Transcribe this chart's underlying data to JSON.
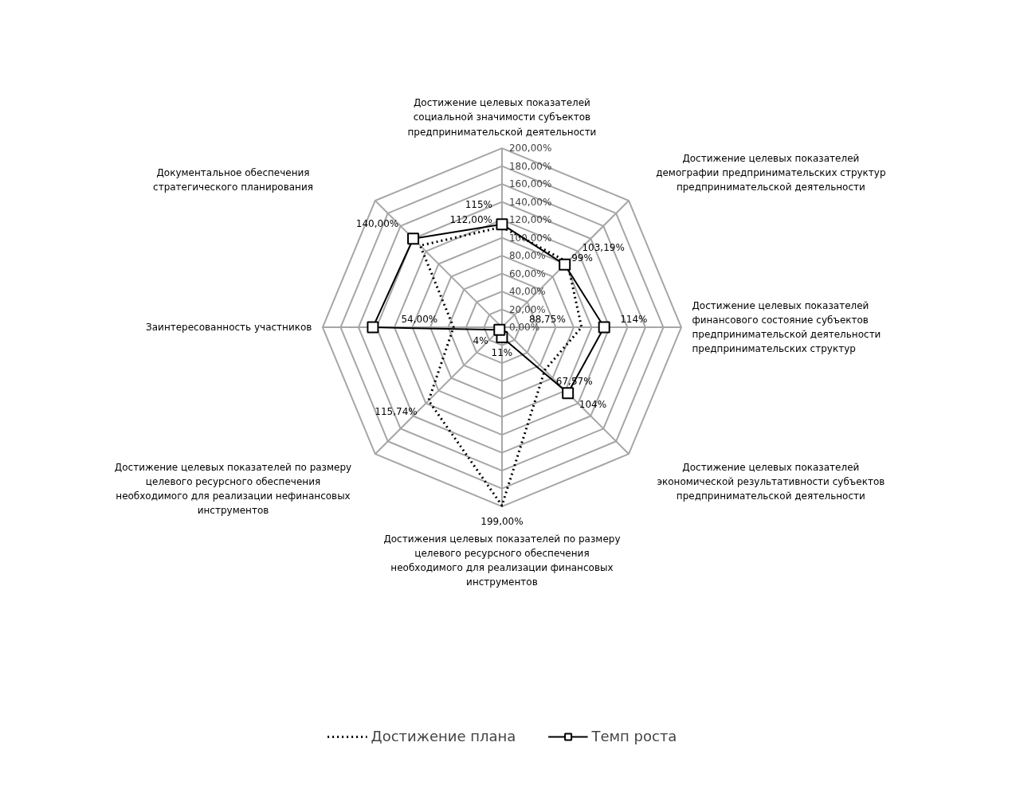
{
  "chart_data": {
    "type": "radar",
    "categories": [
      "Достижение целевых показателей\nсоциальной значимости субъектов\nпредпринимательской деятельности",
      "Достижение целевых показателей\nдемографии предпринимательских структур\nпредпринимательской деятельности",
      "Достижение целевых показателей\nфинансового состояние субъектов\nпредпринимательской деятельности\nпредпринимательских структур",
      "Достижение целевых показателей\nэкономической результативности субъектов\nпредпринимательской деятельности",
      "Достижения целевых показателей по размеру\nцелевого ресурсного обеспечения\nнеобходимого для реализации финансовых\nинструментов",
      "Достижение целевых показателей по размеру\nцелевого ресурсного обеспечения\nнеобходимого для реализации нефинансовых\nинструментов",
      "Заинтересованность участников",
      "Документальное обеспечения\nстратегического планирования"
    ],
    "series": [
      {
        "name": "Достижение плана",
        "color": "#000000",
        "marker": "none",
        "line_style": "dotted",
        "values": [
          112,
          103.19,
          88.75,
          67.57,
          199,
          115.74,
          54,
          129
        ],
        "value_labels": [
          "112,00%",
          "103,19%",
          "88,75%",
          "67,57%",
          "199,00%",
          "115,74%",
          "54,00%",
          null
        ]
      },
      {
        "name": "Темп роста",
        "color": "#000000",
        "marker": "square",
        "line_style": "solid",
        "values": [
          115,
          99,
          114,
          104,
          11,
          4,
          144,
          140
        ],
        "value_labels": [
          "115%",
          "99%",
          "114%",
          "104%",
          "11%",
          "4%",
          null,
          "140,00%"
        ]
      }
    ],
    "ylim": [
      0,
      200
    ],
    "yticks": [
      {
        "value": 0,
        "label": "0,00%"
      },
      {
        "value": 20,
        "label": "20,00%"
      },
      {
        "value": 40,
        "label": "40,00%"
      },
      {
        "value": 60,
        "label": "60,00%"
      },
      {
        "value": 80,
        "label": "80,00%"
      },
      {
        "value": 100,
        "label": "100,00%"
      },
      {
        "value": 120,
        "label": "120,00%"
      },
      {
        "value": 140,
        "label": "140,00%"
      },
      {
        "value": 160,
        "label": "160,00%"
      },
      {
        "value": 180,
        "label": "180,00%"
      },
      {
        "value": 200,
        "label": "200,00%"
      }
    ],
    "grid": true,
    "legend": "bottom"
  }
}
